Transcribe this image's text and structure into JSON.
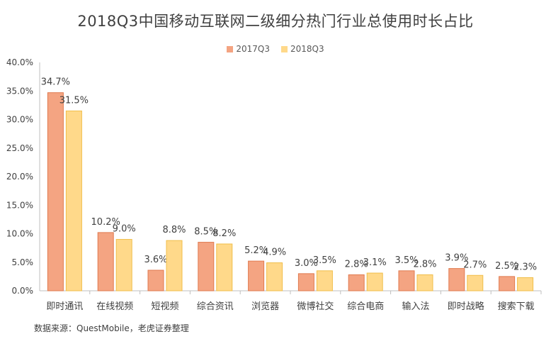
{
  "title": "2018Q3中国移动互联网二级细分热门行业总使用时长占比",
  "source": "数据来源：QuestMobile，老虎证券整理",
  "colors": {
    "series_2017": "#F4A482",
    "series_2017_stroke": "#E07A4F",
    "series_2018": "#FFD98A",
    "series_2018_stroke": "#F0BE4A",
    "axis": "#BFBFBF",
    "text": "#404040"
  },
  "chart_data": {
    "type": "bar",
    "title": "2018Q3中国移动互联网二级细分热门行业总使用时长占比",
    "categories": [
      "即时通讯",
      "在线视频",
      "短视频",
      "综合资讯",
      "浏览器",
      "微博社交",
      "综合电商",
      "输入法",
      "即时战略",
      "搜索下载"
    ],
    "series": [
      {
        "name": "2017Q3",
        "values": [
          34.7,
          10.2,
          3.6,
          8.5,
          5.2,
          3.0,
          2.8,
          3.5,
          3.9,
          2.5
        ],
        "labels": [
          "34.7%",
          "10.2%",
          "3.6%",
          "8.5%",
          "5.2%",
          "3.0%",
          "2.8%",
          "3.5%",
          "3.9%",
          "2.5%"
        ]
      },
      {
        "name": "2018Q3",
        "values": [
          31.5,
          9.0,
          8.8,
          8.2,
          4.9,
          3.5,
          3.1,
          2.8,
          2.7,
          2.3
        ],
        "labels": [
          "31.5%",
          "9.0%",
          "8.8%",
          "8.2%",
          "4.9%",
          "3.5%",
          "3.1%",
          "2.8%",
          "2.7%",
          "2.3%"
        ]
      }
    ],
    "ylim": [
      0,
      40
    ],
    "yticks": [
      "0.0%",
      "5.0%",
      "10.0%",
      "15.0%",
      "20.0%",
      "25.0%",
      "30.0%",
      "35.0%",
      "40.0%"
    ],
    "ytick_values": [
      0,
      5,
      10,
      15,
      20,
      25,
      30,
      35,
      40
    ],
    "legend": "top-center",
    "grid": false
  }
}
